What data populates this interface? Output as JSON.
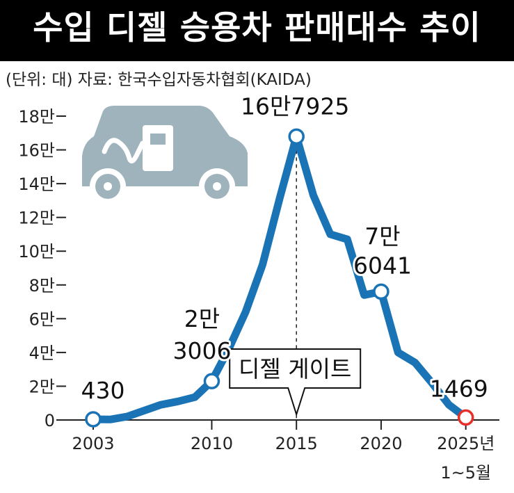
{
  "title": "수입 디젤 승용차 판매대수 추이",
  "subtitle": "(단위: 대) 자료: 한국수입자동차협회(KAIDA)",
  "colors": {
    "line": "#1a73b5",
    "highlight": "#e8302a",
    "icon": "#9fb3bd",
    "header": "#000000"
  },
  "icon": "diesel-car-icon",
  "chart_data": {
    "type": "line",
    "ylabel_unit": "대",
    "ylim": [
      0,
      180000
    ],
    "y_ticks": [
      {
        "value": 0,
        "label": "0"
      },
      {
        "value": 20000,
        "label": "2만"
      },
      {
        "value": 40000,
        "label": "4만"
      },
      {
        "value": 60000,
        "label": "6만"
      },
      {
        "value": 80000,
        "label": "8만"
      },
      {
        "value": 100000,
        "label": "10만"
      },
      {
        "value": 120000,
        "label": "12만"
      },
      {
        "value": 140000,
        "label": "14만"
      },
      {
        "value": 160000,
        "label": "16만"
      },
      {
        "value": 180000,
        "label": "18만"
      }
    ],
    "x_ticks": [
      {
        "value": 2003,
        "label": "2003"
      },
      {
        "value": 2010,
        "label": "2010"
      },
      {
        "value": 2015,
        "label": "2015"
      },
      {
        "value": 2020,
        "label": "2020"
      },
      {
        "value": 2025,
        "label": "2025년",
        "label2": "1~5월"
      }
    ],
    "xlim": [
      2002,
      2026
    ],
    "series": [
      {
        "points": [
          [
            2003,
            430
          ],
          [
            2004,
            300
          ],
          [
            2005,
            2000
          ],
          [
            2006,
            5500
          ],
          [
            2007,
            9000
          ],
          [
            2008,
            11000
          ],
          [
            2009,
            13500
          ],
          [
            2010,
            23006
          ],
          [
            2011,
            42000
          ],
          [
            2012,
            64000
          ],
          [
            2013,
            92000
          ],
          [
            2014,
            131000
          ],
          [
            2015,
            167925
          ],
          [
            2016,
            133000
          ],
          [
            2017,
            110000
          ],
          [
            2018,
            107000
          ],
          [
            2019,
            74000
          ],
          [
            2020,
            76041
          ],
          [
            2021,
            40000
          ],
          [
            2022,
            34000
          ],
          [
            2023,
            22000
          ],
          [
            2024,
            9000
          ],
          [
            2025,
            1469
          ]
        ]
      }
    ],
    "markers": [
      {
        "x": 2003,
        "y": 430,
        "lines": [
          "430"
        ],
        "highlight": false
      },
      {
        "x": 2010,
        "y": 23006,
        "lines": [
          "2만",
          "3006"
        ],
        "highlight": false
      },
      {
        "x": 2015,
        "y": 167925,
        "lines": [
          "16만7925"
        ],
        "highlight": false
      },
      {
        "x": 2020,
        "y": 76041,
        "lines": [
          "7만",
          "6041"
        ],
        "highlight": false
      },
      {
        "x": 2025,
        "y": 1469,
        "lines": [
          "1469"
        ],
        "highlight": true
      }
    ],
    "annotation": {
      "x": 2015,
      "label": "디젤 게이트"
    }
  }
}
